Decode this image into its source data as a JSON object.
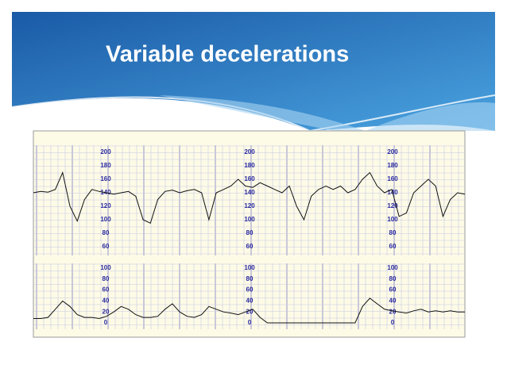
{
  "title": "Variable decelerations",
  "figure": {
    "fhr_scale": [
      "200",
      "180",
      "160",
      "140",
      "120",
      "100",
      "80",
      "60"
    ],
    "uc_scale": [
      "100",
      "80",
      "60",
      "40",
      "20",
      "0"
    ],
    "fhr_trace": [
      140,
      142,
      141,
      145,
      170,
      120,
      98,
      130,
      145,
      142,
      140,
      138,
      140,
      142,
      135,
      100,
      95,
      130,
      142,
      144,
      140,
      143,
      145,
      140,
      100,
      140,
      145,
      150,
      160,
      150,
      148,
      155,
      150,
      145,
      140,
      150,
      120,
      100,
      135,
      145,
      150,
      145,
      150,
      140,
      145,
      160,
      170,
      150,
      140,
      145,
      105,
      110,
      140,
      150,
      160,
      150,
      105,
      130,
      140,
      138
    ],
    "uc_trace": [
      8,
      8,
      10,
      25,
      40,
      30,
      15,
      10,
      10,
      8,
      12,
      20,
      30,
      25,
      15,
      10,
      10,
      12,
      25,
      35,
      20,
      12,
      10,
      15,
      30,
      25,
      20,
      18,
      15,
      20,
      25,
      10,
      0,
      0,
      0,
      0,
      0,
      0,
      0,
      0,
      0,
      0,
      0,
      0,
      0,
      30,
      45,
      35,
      25,
      22,
      20,
      18,
      22,
      25,
      20,
      22,
      20,
      22,
      20,
      20
    ]
  }
}
